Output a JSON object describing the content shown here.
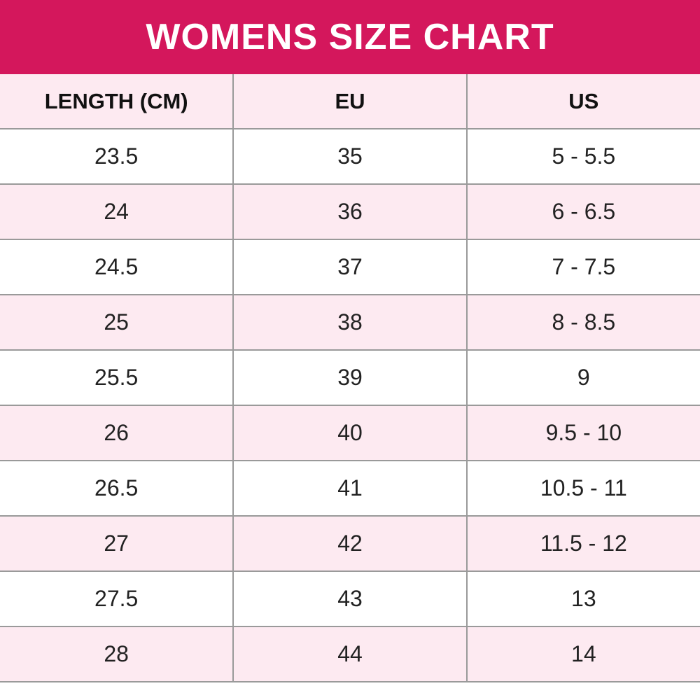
{
  "title": "WOMENS SIZE CHART",
  "colors": {
    "header_bar": "#d4175c",
    "alt_row": "#fdeaf1",
    "border": "#9a9a9a"
  },
  "columns": [
    "LENGTH (CM)",
    "EU",
    "US"
  ],
  "rows": [
    [
      "23.5",
      "35",
      "5 - 5.5"
    ],
    [
      "24",
      "36",
      "6 - 6.5"
    ],
    [
      "24.5",
      "37",
      "7 - 7.5"
    ],
    [
      "25",
      "38",
      "8 - 8.5"
    ],
    [
      "25.5",
      "39",
      "9"
    ],
    [
      "26",
      "40",
      "9.5 - 10"
    ],
    [
      "26.5",
      "41",
      "10.5 - 11"
    ],
    [
      "27",
      "42",
      "11.5 - 12"
    ],
    [
      "27.5",
      "43",
      "13"
    ],
    [
      "28",
      "44",
      "14"
    ]
  ]
}
